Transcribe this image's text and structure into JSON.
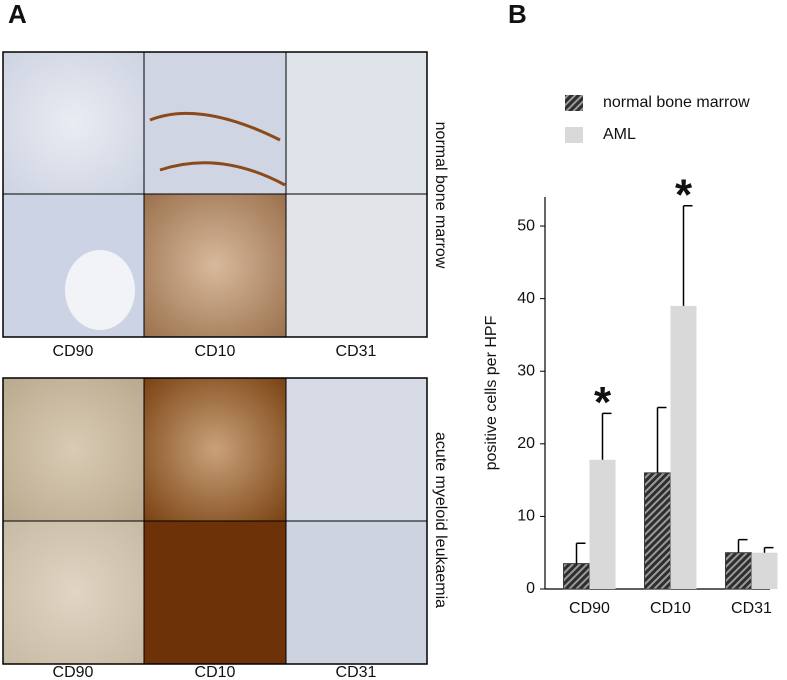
{
  "panel_a": {
    "label": "A",
    "columns": [
      "CD90",
      "CD10",
      "CD31"
    ],
    "columns_lower": [
      "CD90",
      "CD10",
      "CD31"
    ],
    "rows": [
      "normal bone marrow",
      "acute myeloid leukaemia"
    ]
  },
  "chart_data": {
    "type": "bar",
    "label": "B",
    "y_label": "positive cells per HPF",
    "categories": [
      "CD90",
      "CD10",
      "CD31"
    ],
    "series": [
      {
        "name": "normal bone marrow",
        "color": "#3c3c3c",
        "hatch": true,
        "values": [
          3.5,
          16,
          5
        ],
        "errors": [
          2.8,
          9,
          1.8
        ]
      },
      {
        "name": "AML",
        "color": "#d9d9d9",
        "hatch": false,
        "values": [
          17.8,
          39,
          5
        ],
        "errors": [
          6.4,
          13.8,
          0.7
        ]
      }
    ],
    "annotations": [
      {
        "text": "*",
        "x": "CD90"
      },
      {
        "text": "*",
        "x": "CD10"
      }
    ],
    "ylim": [
      0,
      54
    ],
    "yticks": [
      0,
      10,
      20,
      30,
      40,
      50
    ],
    "grid": false
  }
}
